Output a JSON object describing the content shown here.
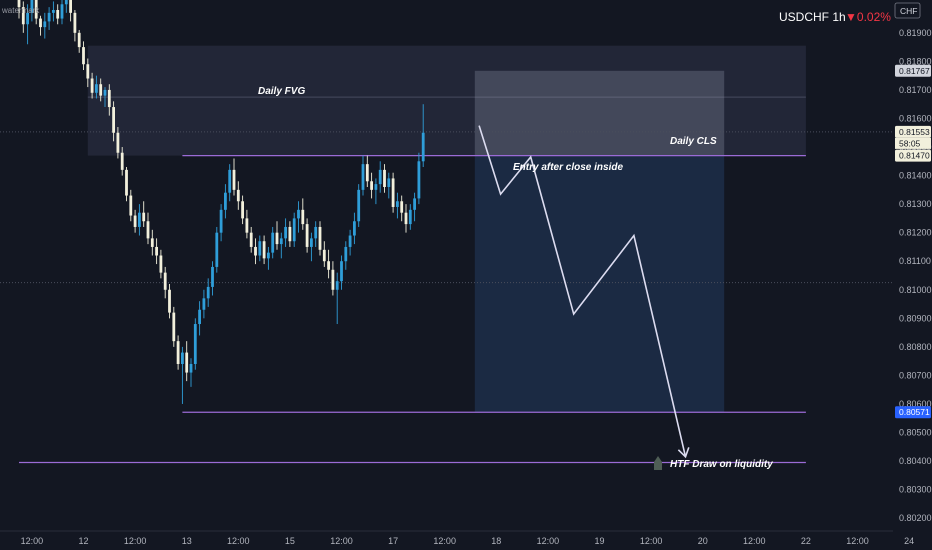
{
  "watermark": "watermark",
  "header": {
    "symbol": "USDCHF",
    "timeframe": "1h",
    "change_arrow": "▼",
    "change": "0.02%"
  },
  "currency_badge": "CHF",
  "colors": {
    "background": "#131722",
    "up": "#2f9ed9",
    "down": "#f2f0dc",
    "level": "#9b6bd6",
    "path": "#dcdcf0"
  },
  "price_tags": {
    "box_top": "0.81767",
    "current": "0.81553",
    "countdown": "58:05",
    "line": "0.81470",
    "low": "0.80571"
  },
  "annotations": {
    "fvg": "Daily FVG",
    "cls": "Daily CLS",
    "entry": "Entry after close inside",
    "htf": "HTF Draw on liquidity"
  },
  "chart_data": {
    "type": "candlestick",
    "title": "",
    "y_axis": {
      "range": [
        0.80155,
        0.82015
      ],
      "ticks": [
        "0.81900",
        "0.81800",
        "0.81700",
        "0.81600",
        "0.81500",
        "0.81400",
        "0.81300",
        "0.81200",
        "0.81100",
        "0.81000",
        "0.80900",
        "0.80800",
        "0.80700",
        "0.80600",
        "0.80500",
        "0.80400",
        "0.80300",
        "0.80200"
      ]
    },
    "x_axis": {
      "ticks": [
        {
          "label": "12:00",
          "t": 3
        },
        {
          "label": "12",
          "t": 15
        },
        {
          "label": "12:00",
          "t": 27
        },
        {
          "label": "13",
          "t": 39
        },
        {
          "label": "12:00",
          "t": 51
        },
        {
          "label": "15",
          "t": 63
        },
        {
          "label": "12:00",
          "t": 75
        },
        {
          "label": "17",
          "t": 87
        },
        {
          "label": "12:00",
          "t": 99
        },
        {
          "label": "18",
          "t": 111
        },
        {
          "label": "12:00",
          "t": 123
        },
        {
          "label": "19",
          "t": 135
        },
        {
          "label": "12:00",
          "t": 147
        },
        {
          "label": "20",
          "t": 159
        },
        {
          "label": "12:00",
          "t": 171
        },
        {
          "label": "22",
          "t": 183
        },
        {
          "label": "12:00",
          "t": 195
        },
        {
          "label": "24",
          "t": 207
        }
      ]
    },
    "zones": {
      "daily_fvg": {
        "t0": 16,
        "t1": 183,
        "top": 0.81855,
        "bottom": 0.8147
      },
      "short_box_risk": {
        "t0": 106,
        "t1": 164,
        "top": 0.81767,
        "bottom": 0.8147
      },
      "short_box_reward": {
        "t0": 106,
        "t1": 164,
        "top": 0.8147,
        "bottom": 0.80571
      }
    },
    "levels": [
      {
        "name": "daily-cls",
        "price": 0.8147,
        "t0": 38,
        "t1": 183
      },
      {
        "name": "swing-low",
        "price": 0.80571,
        "t0": 38,
        "t1": 183
      },
      {
        "name": "htf-liquidity",
        "price": 0.80395,
        "t0": 0,
        "t1": 183
      }
    ],
    "dotted_levels": [
      0.81553,
      0.81025
    ],
    "projected_path": [
      {
        "t": 107,
        "p": 0.81575
      },
      {
        "t": 112,
        "p": 0.81335
      },
      {
        "t": 119,
        "p": 0.81465
      },
      {
        "t": 129,
        "p": 0.80915
      },
      {
        "t": 143,
        "p": 0.8119
      },
      {
        "t": 155,
        "p": 0.80415
      }
    ],
    "ohlc": [
      [
        0.8203,
        0.8205,
        0.8195,
        0.8199
      ],
      [
        0.8199,
        0.8201,
        0.819,
        0.8193
      ],
      [
        0.8193,
        0.82,
        0.8186,
        0.8197
      ],
      [
        0.8197,
        0.8205,
        0.8194,
        0.8202
      ],
      [
        0.8202,
        0.8204,
        0.8193,
        0.8195
      ],
      [
        0.8195,
        0.8196,
        0.8189,
        0.8192
      ],
      [
        0.8192,
        0.8197,
        0.8188,
        0.8194
      ],
      [
        0.8194,
        0.8199,
        0.8191,
        0.8197
      ],
      [
        0.8197,
        0.8201,
        0.8194,
        0.8198
      ],
      [
        0.8198,
        0.82,
        0.8193,
        0.8195
      ],
      [
        0.8195,
        0.8202,
        0.8193,
        0.82
      ],
      [
        0.82,
        0.8206,
        0.8197,
        0.8203
      ],
      [
        0.8203,
        0.8204,
        0.8194,
        0.8197
      ],
      [
        0.8197,
        0.8198,
        0.8187,
        0.819
      ],
      [
        0.819,
        0.8191,
        0.8183,
        0.8185
      ],
      [
        0.8185,
        0.8187,
        0.8177,
        0.8179
      ],
      [
        0.8179,
        0.8181,
        0.8171,
        0.8174
      ],
      [
        0.8174,
        0.8176,
        0.8167,
        0.8169
      ],
      [
        0.8169,
        0.8175,
        0.8167,
        0.8172
      ],
      [
        0.8172,
        0.8174,
        0.8166,
        0.8168
      ],
      [
        0.8168,
        0.8171,
        0.8164,
        0.817
      ],
      [
        0.817,
        0.8172,
        0.8161,
        0.8164
      ],
      [
        0.8164,
        0.8166,
        0.8152,
        0.8155
      ],
      [
        0.8155,
        0.8157,
        0.8146,
        0.8148
      ],
      [
        0.8148,
        0.815,
        0.814,
        0.8142
      ],
      [
        0.8142,
        0.8143,
        0.8131,
        0.8133
      ],
      [
        0.8133,
        0.8135,
        0.8124,
        0.8126
      ],
      [
        0.8126,
        0.8128,
        0.812,
        0.8122
      ],
      [
        0.8122,
        0.813,
        0.8119,
        0.8127
      ],
      [
        0.8127,
        0.8131,
        0.8122,
        0.8124
      ],
      [
        0.8124,
        0.8127,
        0.8116,
        0.8118
      ],
      [
        0.8118,
        0.8121,
        0.8112,
        0.8115
      ],
      [
        0.8115,
        0.8118,
        0.8109,
        0.8112
      ],
      [
        0.8112,
        0.8114,
        0.8104,
        0.8106
      ],
      [
        0.8106,
        0.8108,
        0.8097,
        0.81
      ],
      [
        0.81,
        0.8102,
        0.809,
        0.8092
      ],
      [
        0.8092,
        0.8094,
        0.808,
        0.8082
      ],
      [
        0.8082,
        0.8084,
        0.8072,
        0.8074
      ],
      [
        0.8074,
        0.808,
        0.806,
        0.8078
      ],
      [
        0.8078,
        0.8082,
        0.8068,
        0.8071
      ],
      [
        0.8071,
        0.8076,
        0.8066,
        0.8074
      ],
      [
        0.8074,
        0.809,
        0.8072,
        0.8088
      ],
      [
        0.8088,
        0.8096,
        0.8084,
        0.8093
      ],
      [
        0.8093,
        0.81,
        0.809,
        0.8097
      ],
      [
        0.8097,
        0.8104,
        0.8094,
        0.8101
      ],
      [
        0.8101,
        0.811,
        0.8098,
        0.8108
      ],
      [
        0.8108,
        0.8122,
        0.8106,
        0.812
      ],
      [
        0.812,
        0.813,
        0.8117,
        0.8128
      ],
      [
        0.8128,
        0.8137,
        0.8125,
        0.8134
      ],
      [
        0.8134,
        0.8144,
        0.8131,
        0.8142
      ],
      [
        0.8142,
        0.8146,
        0.8133,
        0.8135
      ],
      [
        0.8135,
        0.8138,
        0.8128,
        0.8131
      ],
      [
        0.8131,
        0.8133,
        0.8123,
        0.8125
      ],
      [
        0.8125,
        0.8128,
        0.8118,
        0.812
      ],
      [
        0.812,
        0.8122,
        0.8113,
        0.8115
      ],
      [
        0.8115,
        0.8118,
        0.8109,
        0.8112
      ],
      [
        0.8112,
        0.8119,
        0.811,
        0.8117
      ],
      [
        0.8117,
        0.8119,
        0.8109,
        0.8111
      ],
      [
        0.8111,
        0.8115,
        0.8107,
        0.8113
      ],
      [
        0.8113,
        0.8122,
        0.8111,
        0.812
      ],
      [
        0.812,
        0.8124,
        0.8114,
        0.8116
      ],
      [
        0.8116,
        0.812,
        0.8111,
        0.8118
      ],
      [
        0.8118,
        0.8125,
        0.8115,
        0.8122
      ],
      [
        0.8122,
        0.8124,
        0.8115,
        0.8117
      ],
      [
        0.8117,
        0.8127,
        0.8115,
        0.8125
      ],
      [
        0.8125,
        0.8131,
        0.812,
        0.8128
      ],
      [
        0.8128,
        0.8132,
        0.8121,
        0.8123
      ],
      [
        0.8123,
        0.8125,
        0.8113,
        0.8115
      ],
      [
        0.8115,
        0.812,
        0.811,
        0.8118
      ],
      [
        0.8118,
        0.8124,
        0.8115,
        0.8122
      ],
      [
        0.8122,
        0.8124,
        0.8112,
        0.8114
      ],
      [
        0.8114,
        0.8117,
        0.8108,
        0.811
      ],
      [
        0.811,
        0.8114,
        0.8104,
        0.8107
      ],
      [
        0.8107,
        0.811,
        0.8098,
        0.81
      ],
      [
        0.81,
        0.8106,
        0.8088,
        0.8103
      ],
      [
        0.8103,
        0.8112,
        0.81,
        0.811
      ],
      [
        0.811,
        0.8117,
        0.8107,
        0.8115
      ],
      [
        0.8115,
        0.8121,
        0.8112,
        0.8119
      ],
      [
        0.8119,
        0.8127,
        0.8116,
        0.8124
      ],
      [
        0.8124,
        0.8137,
        0.8122,
        0.8135
      ],
      [
        0.8135,
        0.8147,
        0.8133,
        0.8144
      ],
      [
        0.8144,
        0.8147,
        0.8136,
        0.8138
      ],
      [
        0.8138,
        0.8141,
        0.8132,
        0.8135
      ],
      [
        0.8135,
        0.8139,
        0.813,
        0.8137
      ],
      [
        0.8137,
        0.8145,
        0.8134,
        0.8142
      ],
      [
        0.8142,
        0.8144,
        0.8134,
        0.8136
      ],
      [
        0.8136,
        0.8141,
        0.8132,
        0.8139
      ],
      [
        0.8139,
        0.8141,
        0.8127,
        0.8129
      ],
      [
        0.8129,
        0.8134,
        0.8125,
        0.8131
      ],
      [
        0.8131,
        0.8133,
        0.8124,
        0.8127
      ],
      [
        0.8127,
        0.813,
        0.812,
        0.8123
      ],
      [
        0.8123,
        0.813,
        0.8121,
        0.8128
      ],
      [
        0.8128,
        0.8134,
        0.8124,
        0.8132
      ],
      [
        0.8132,
        0.8148,
        0.813,
        0.8145
      ],
      [
        0.8145,
        0.8165,
        0.8143,
        0.8155
      ]
    ]
  }
}
